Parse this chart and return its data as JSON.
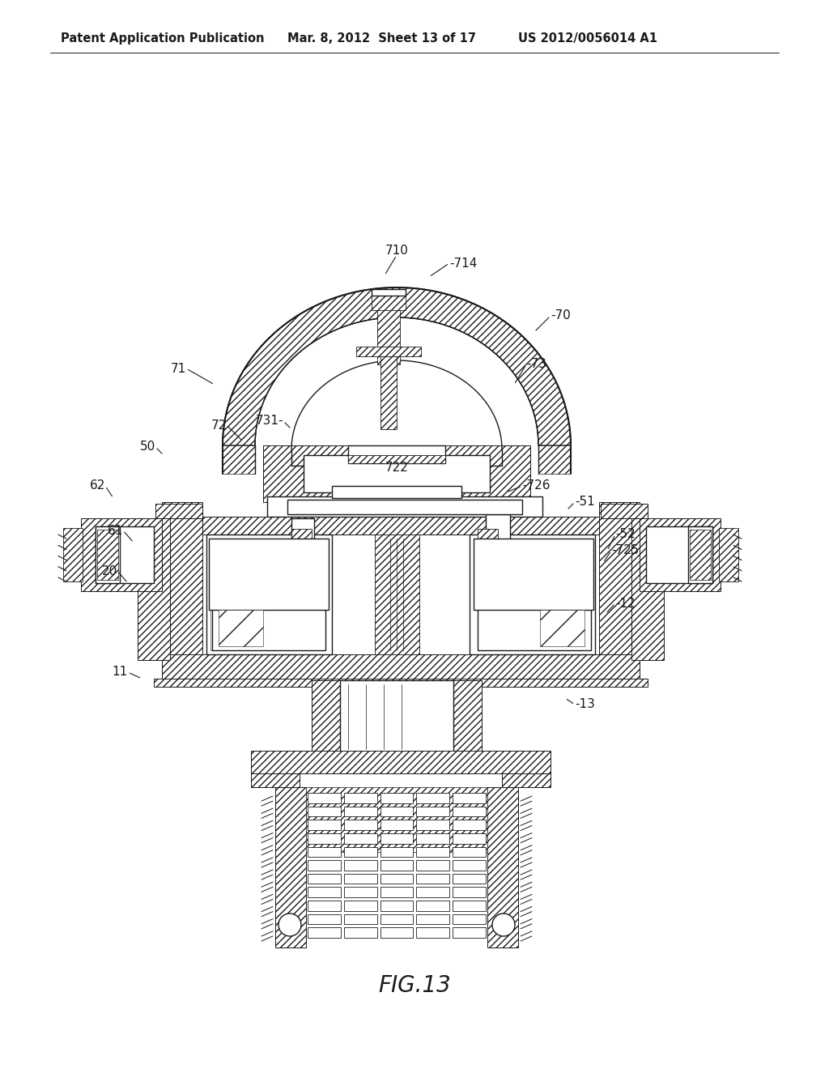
{
  "bg_color": "#ffffff",
  "line_color": "#1a1a1a",
  "title": "FIG.13",
  "title_fontsize": 20,
  "header_left": "Patent Application Publication",
  "header_mid": "Mar. 8, 2012  Sheet 13 of 17",
  "header_right": "US 2012/0056014 A1",
  "header_fontsize": 10.5
}
